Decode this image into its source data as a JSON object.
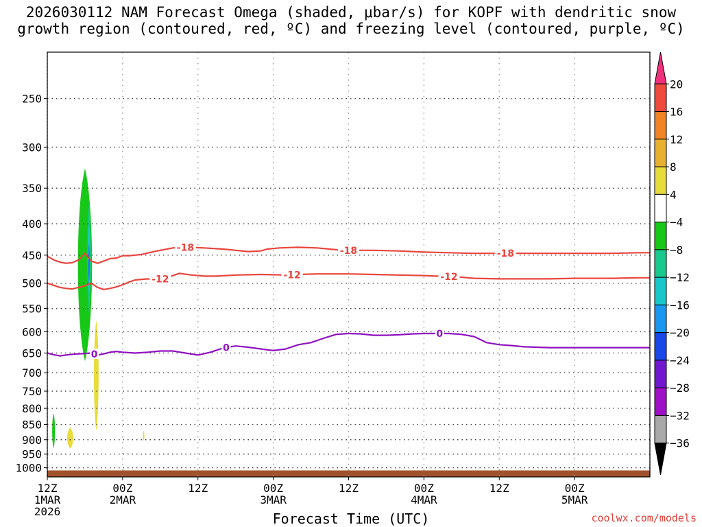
{
  "header": {
    "title_line1": "2026030112 NAM Forecast Omega (shaded, μbar/s) for KOPF with dendritic snow",
    "title_line2": "growth region (contoured, red, ºC) and freezing level (contoured, purple, ºC)"
  },
  "footer": {
    "credit": "coolwx.com/models"
  },
  "chart_data": {
    "type": "heatmap",
    "xlabel": "Forecast Time (UTC)",
    "ylabel": "",
    "x_range_hours": [
      0,
      96
    ],
    "y_range_hpa": [
      210,
      1035
    ],
    "y_scale": "log",
    "grid": "dotted",
    "x_ticks": [
      {
        "hour": 0,
        "lines": [
          "12Z",
          "1MAR",
          "2026"
        ]
      },
      {
        "hour": 12,
        "lines": [
          "00Z",
          "2MAR"
        ]
      },
      {
        "hour": 24,
        "lines": [
          "12Z"
        ]
      },
      {
        "hour": 36,
        "lines": [
          "00Z",
          "3MAR"
        ]
      },
      {
        "hour": 48,
        "lines": [
          "12Z"
        ]
      },
      {
        "hour": 60,
        "lines": [
          "00Z",
          "4MAR"
        ]
      },
      {
        "hour": 72,
        "lines": [
          "12Z"
        ]
      },
      {
        "hour": 84,
        "lines": [
          "00Z",
          "5MAR"
        ]
      }
    ],
    "y_ticks": [
      250,
      300,
      350,
      400,
      450,
      500,
      550,
      600,
      650,
      700,
      750,
      800,
      850,
      900,
      950,
      1000
    ],
    "colorbar": {
      "levels": [
        "20",
        "16",
        "12",
        "8",
        "4",
        "−4",
        "−8",
        "−12",
        "−16",
        "−20",
        "−24",
        "−28",
        "−32",
        "−36"
      ],
      "colors": [
        "#f0307a",
        "#f04a3c",
        "#f08426",
        "#e8b030",
        "#e8dc3c",
        "#ffffff",
        "#18c818",
        "#18c88c",
        "#18c8c8",
        "#1898f0",
        "#1848e8",
        "#7018d0",
        "#a010c8",
        "#a8a8a8",
        "#000000"
      ]
    },
    "contours": [
      {
        "label": "-18",
        "color": "#e8453c",
        "label_hours": [
          22,
          48,
          73
        ],
        "points": [
          [
            0,
            452
          ],
          [
            1,
            458
          ],
          [
            2,
            462
          ],
          [
            3,
            464
          ],
          [
            4,
            463
          ],
          [
            5,
            458
          ],
          [
            6,
            447
          ],
          [
            7,
            460
          ],
          [
            8,
            464
          ],
          [
            9,
            460
          ],
          [
            10,
            456
          ],
          [
            11,
            455
          ],
          [
            12,
            451
          ],
          [
            13,
            451
          ],
          [
            14,
            450
          ],
          [
            15,
            449
          ],
          [
            17,
            444
          ],
          [
            20,
            438
          ],
          [
            22,
            437
          ],
          [
            25,
            438
          ],
          [
            28,
            440
          ],
          [
            30,
            442
          ],
          [
            32,
            444
          ],
          [
            34,
            443
          ],
          [
            35,
            440
          ],
          [
            37,
            438
          ],
          [
            40,
            437
          ],
          [
            43,
            438
          ],
          [
            46,
            441
          ],
          [
            48,
            442
          ],
          [
            52,
            442
          ],
          [
            56,
            443
          ],
          [
            60,
            445
          ],
          [
            64,
            446
          ],
          [
            68,
            447
          ],
          [
            72,
            447
          ],
          [
            76,
            447
          ],
          [
            80,
            447
          ],
          [
            84,
            447
          ],
          [
            86,
            447
          ],
          [
            90,
            447
          ],
          [
            94,
            446
          ],
          [
            96,
            446
          ]
        ]
      },
      {
        "label": "-12",
        "color": "#e8453c",
        "label_hours": [
          18,
          39,
          64
        ],
        "points": [
          [
            0,
            500
          ],
          [
            1,
            504
          ],
          [
            2,
            508
          ],
          [
            3,
            510
          ],
          [
            4,
            511
          ],
          [
            5,
            508
          ],
          [
            6,
            505
          ],
          [
            7,
            500
          ],
          [
            8,
            508
          ],
          [
            9,
            512
          ],
          [
            10,
            510
          ],
          [
            11,
            507
          ],
          [
            12,
            503
          ],
          [
            13,
            498
          ],
          [
            14,
            494
          ],
          [
            16,
            492
          ],
          [
            17,
            494
          ],
          [
            19,
            490
          ],
          [
            21,
            482
          ],
          [
            23,
            485
          ],
          [
            25,
            487
          ],
          [
            27,
            487
          ],
          [
            30,
            485
          ],
          [
            34,
            484
          ],
          [
            38,
            485
          ],
          [
            40,
            484
          ],
          [
            43,
            483
          ],
          [
            46,
            483
          ],
          [
            48,
            483
          ],
          [
            52,
            484
          ],
          [
            56,
            485
          ],
          [
            60,
            486
          ],
          [
            62,
            487
          ],
          [
            65,
            488
          ],
          [
            68,
            491
          ],
          [
            72,
            492
          ],
          [
            76,
            492
          ],
          [
            80,
            492
          ],
          [
            84,
            491
          ],
          [
            86,
            491
          ],
          [
            90,
            491
          ],
          [
            94,
            490
          ],
          [
            96,
            490
          ]
        ]
      },
      {
        "label": "0",
        "color": "#9010c0",
        "label_hours": [
          7.5,
          28.5,
          62.5
        ],
        "points": [
          [
            0,
            650
          ],
          [
            1,
            654
          ],
          [
            2,
            657
          ],
          [
            3,
            655
          ],
          [
            4,
            653
          ],
          [
            5,
            652
          ],
          [
            6,
            651
          ],
          [
            7,
            650
          ],
          [
            8,
            655
          ],
          [
            9,
            652
          ],
          [
            10,
            648
          ],
          [
            11,
            646
          ],
          [
            12,
            648
          ],
          [
            14,
            650
          ],
          [
            16,
            648
          ],
          [
            18,
            645
          ],
          [
            20,
            645
          ],
          [
            22,
            650
          ],
          [
            24,
            655
          ],
          [
            26,
            648
          ],
          [
            28,
            638
          ],
          [
            30,
            633
          ],
          [
            32,
            636
          ],
          [
            34,
            640
          ],
          [
            36,
            644
          ],
          [
            38,
            640
          ],
          [
            40,
            630
          ],
          [
            42,
            625
          ],
          [
            44,
            615
          ],
          [
            46,
            606
          ],
          [
            48,
            604
          ],
          [
            50,
            605
          ],
          [
            52,
            608
          ],
          [
            54,
            608
          ],
          [
            56,
            607
          ],
          [
            58,
            605
          ],
          [
            60,
            604
          ],
          [
            62,
            604
          ],
          [
            64,
            604
          ],
          [
            66,
            606
          ],
          [
            68,
            611
          ],
          [
            70,
            625
          ],
          [
            72,
            630
          ],
          [
            74,
            632
          ],
          [
            76,
            635
          ],
          [
            78,
            636
          ],
          [
            80,
            637
          ],
          [
            82,
            637
          ],
          [
            84,
            637
          ],
          [
            86,
            637
          ],
          [
            90,
            637
          ],
          [
            94,
            637
          ],
          [
            96,
            637
          ]
        ]
      }
    ],
    "omega_regions": [
      {
        "level": "-4 to -8",
        "color": "#18c818",
        "hours": [
          4.5,
          7.5
        ],
        "top_hpa": 325,
        "bottom_hpa": 670
      },
      {
        "level": "-8 to -12",
        "color": "#18c88c",
        "hours": [
          6.3,
          7.0
        ],
        "top_hpa": 370,
        "bottom_hpa": 560
      },
      {
        "level": "-12 to -16",
        "color": "#18c8c8",
        "hours": [
          6.4,
          6.9
        ],
        "top_hpa": 400,
        "bottom_hpa": 520
      },
      {
        "level": "-20 to -24",
        "color": "#1848e8",
        "hours": [
          6.55,
          6.75
        ],
        "top_hpa": 430,
        "bottom_hpa": 500
      },
      {
        "level": "4 to 8",
        "color": "#e8dc3c",
        "hours": [
          7.3,
          8.3
        ],
        "top_hpa": 575,
        "bottom_hpa": 870
      },
      {
        "level": "-4 to -8",
        "color": "#18c818",
        "hours": [
          0.7,
          1.3
        ],
        "top_hpa": 815,
        "bottom_hpa": 930
      },
      {
        "level": "4 to 8",
        "color": "#e8dc3c",
        "hours": [
          3.0,
          4.3
        ],
        "top_hpa": 860,
        "bottom_hpa": 930
      },
      {
        "level": "4 to 8",
        "color": "#e8dc3c",
        "hours": [
          15.2,
          15.5
        ],
        "top_hpa": 870,
        "bottom_hpa": 905
      }
    ],
    "terrain": {
      "color": "#a0522d",
      "surface_hpa": 1010
    }
  }
}
